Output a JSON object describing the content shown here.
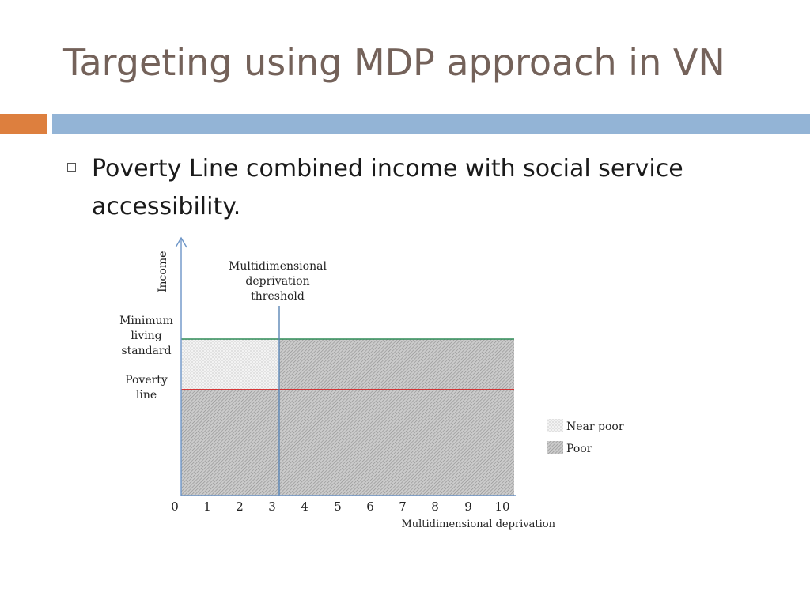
{
  "slide": {
    "title": "Targeting using MDP approach in VN",
    "bullet": "Poverty Line combined income with social service accessibility."
  },
  "colors": {
    "title": "#74625a",
    "accent_orange": "#dd7f3e",
    "accent_blue": "#93b4d6",
    "minimum_line": "#2e8b57",
    "poverty_line": "#d42020",
    "threshold_line": "#5b86b5",
    "axis": "#6d95c7"
  },
  "diagram": {
    "y_axis_label": "Income",
    "x_axis_label": "Multidimensional deprivation",
    "threshold_label": [
      "Multidimensional",
      "deprivation",
      "threshold"
    ],
    "minimum_label": [
      "Minimum",
      "living",
      "standard"
    ],
    "poverty_label": [
      "Poverty",
      "line"
    ],
    "x_ticks": [
      "0",
      "1",
      "2",
      "3",
      "4",
      "5",
      "6",
      "7",
      "8",
      "9",
      "10"
    ],
    "legend": {
      "near_poor": "Near poor",
      "poor": "Poor"
    }
  }
}
